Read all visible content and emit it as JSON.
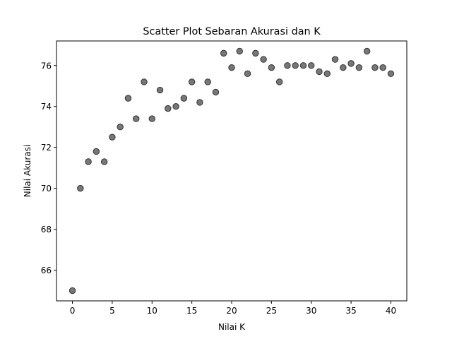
{
  "chart_data": {
    "type": "scatter",
    "title": "Scatter Plot Sebaran Akurasi dan K",
    "xlabel": "Nilai K",
    "ylabel": "Nilai Akurasi",
    "xlim": [
      -2,
      42
    ],
    "ylim": [
      64.5,
      77.2
    ],
    "xticks": [
      0,
      5,
      10,
      15,
      20,
      25,
      30,
      35,
      40
    ],
    "yticks": [
      66,
      68,
      70,
      72,
      74,
      76
    ],
    "grid": false,
    "marker_color": "#777777",
    "marker_edge_color": "#333333",
    "x": [
      0,
      1,
      2,
      3,
      4,
      5,
      6,
      7,
      8,
      9,
      10,
      11,
      12,
      13,
      14,
      15,
      16,
      17,
      18,
      19,
      20,
      21,
      22,
      23,
      24,
      25,
      26,
      27,
      28,
      29,
      30,
      31,
      32,
      33,
      34,
      35,
      36,
      37,
      38,
      39,
      40
    ],
    "y": [
      65.0,
      70.0,
      71.3,
      71.8,
      71.3,
      72.5,
      73.0,
      74.4,
      73.4,
      75.2,
      73.4,
      74.8,
      73.9,
      74.0,
      74.4,
      75.2,
      74.2,
      75.2,
      74.7,
      76.6,
      75.9,
      76.7,
      75.6,
      76.6,
      76.3,
      75.9,
      75.2,
      76.0,
      76.0,
      76.0,
      76.0,
      75.7,
      75.6,
      76.3,
      75.9,
      76.1,
      75.9,
      76.7,
      75.9,
      75.9,
      75.6
    ]
  }
}
